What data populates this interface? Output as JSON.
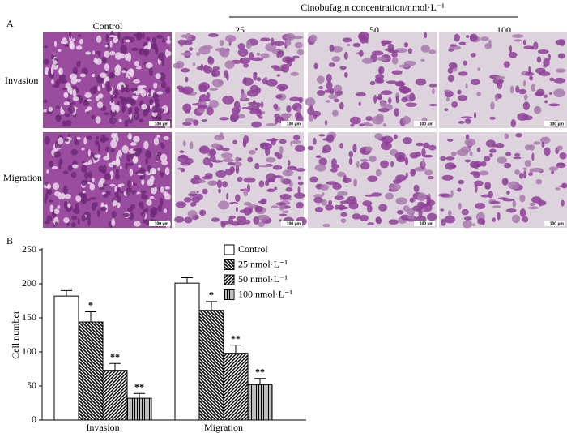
{
  "panel_a": {
    "label": "A",
    "control_header": "Control",
    "group_header": "Cinobufagin concentration/nmol·L⁻¹",
    "column_headers": [
      "25",
      "50",
      "100"
    ],
    "row_labels": [
      "Invasion",
      "Migration"
    ],
    "scale_bar": "100 μm"
  },
  "chart_data": {
    "type": "bar",
    "panel_label": "B",
    "ylabel": "Cell number",
    "categories": [
      "Invasion",
      "Migration"
    ],
    "series": [
      {
        "name": "Control",
        "color": "#ffffff",
        "hatch": "none",
        "values": [
          182,
          201
        ],
        "errors": [
          8,
          8
        ],
        "significance": [
          null,
          null
        ]
      },
      {
        "name": "25 nmol·L⁻¹",
        "color": "#000000",
        "hatch": "backslash",
        "values": [
          144,
          161
        ],
        "errors": [
          15,
          13
        ],
        "significance": [
          "*",
          "*"
        ]
      },
      {
        "name": "50 nmol·L⁻¹",
        "color": "#000000",
        "hatch": "slash",
        "values": [
          73,
          98
        ],
        "errors": [
          10,
          12
        ],
        "significance": [
          "**",
          "**"
        ]
      },
      {
        "name": "100 nmol·L⁻¹",
        "color": "#000000",
        "hatch": "vertical",
        "values": [
          32,
          52
        ],
        "errors": [
          7,
          9
        ],
        "significance": [
          "**",
          "**"
        ]
      }
    ],
    "ylim": [
      0,
      250
    ],
    "yticks": [
      0,
      50,
      100,
      150,
      200,
      250
    ],
    "grid": false
  }
}
